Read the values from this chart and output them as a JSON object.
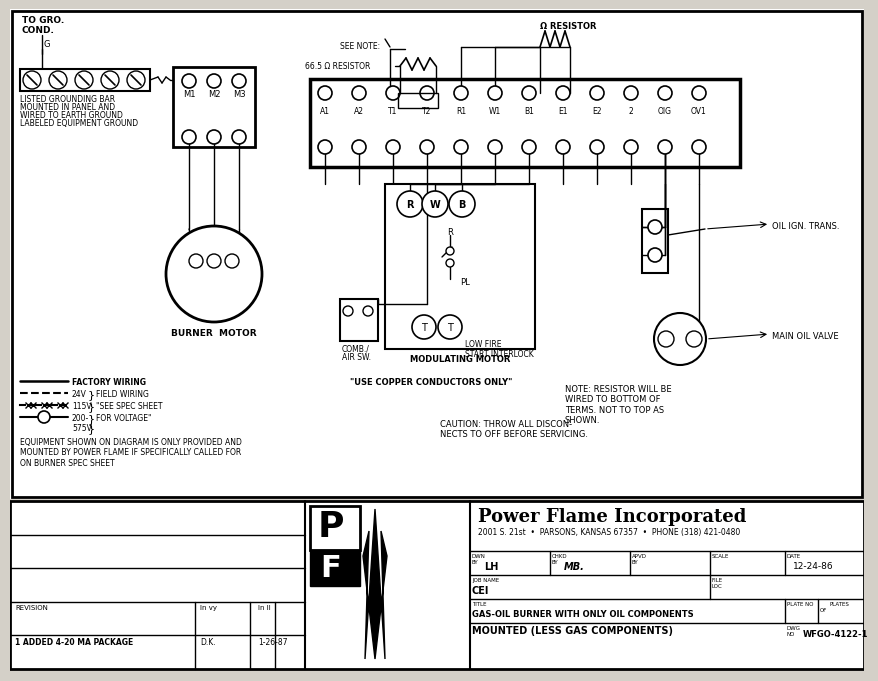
{
  "bg_color": "#d4d0c8",
  "title_line": "GAS-OIL BURNER WITH ONLY OIL COMPONENTS",
  "subtitle": "MOUNTED (LESS GAS COMPONENTS)",
  "company": "Power Flame Incorporated",
  "company_address": "2001 S. 21st  •  PARSONS, KANSAS 67357  •  PHONE (318) 421-0480",
  "drawing_no": "WFGO-4122-1",
  "date": "12-24-86",
  "drawn_by": "LH",
  "checked_by": "MB.",
  "job_name": "CEI",
  "revision_text": "1 ADDED 4-20 MA PACKAGE",
  "rev_by": "D.K.",
  "rev_date": "1-26-87",
  "terminal_labels": [
    "A1",
    "A2",
    "T1",
    "T2",
    "R1",
    "W1",
    "B1",
    "E1",
    "E2",
    "2",
    "OIG",
    "OV1"
  ],
  "note_resistor": "NOTE: RESISTOR WILL BE\nWIRED TO BOTTOM OF\nTERMS. NOT TO TOP AS\nSHOWN.",
  "copper_note": "\"USE COPPER CONDUCTORS ONLY\"",
  "caution_note": "CAUTION: THROW ALL DISCON-\nNECTS TO OFF BEFORE SERVICING.",
  "equipment_note": "EQUIPMENT SHOWN ON DIAGRAM IS ONLY PROVIDED AND\nMOUNTED BY POWER FLAME IF SPECIFICALLY CALLED FOR\nON BURNER SPEC SHEET"
}
